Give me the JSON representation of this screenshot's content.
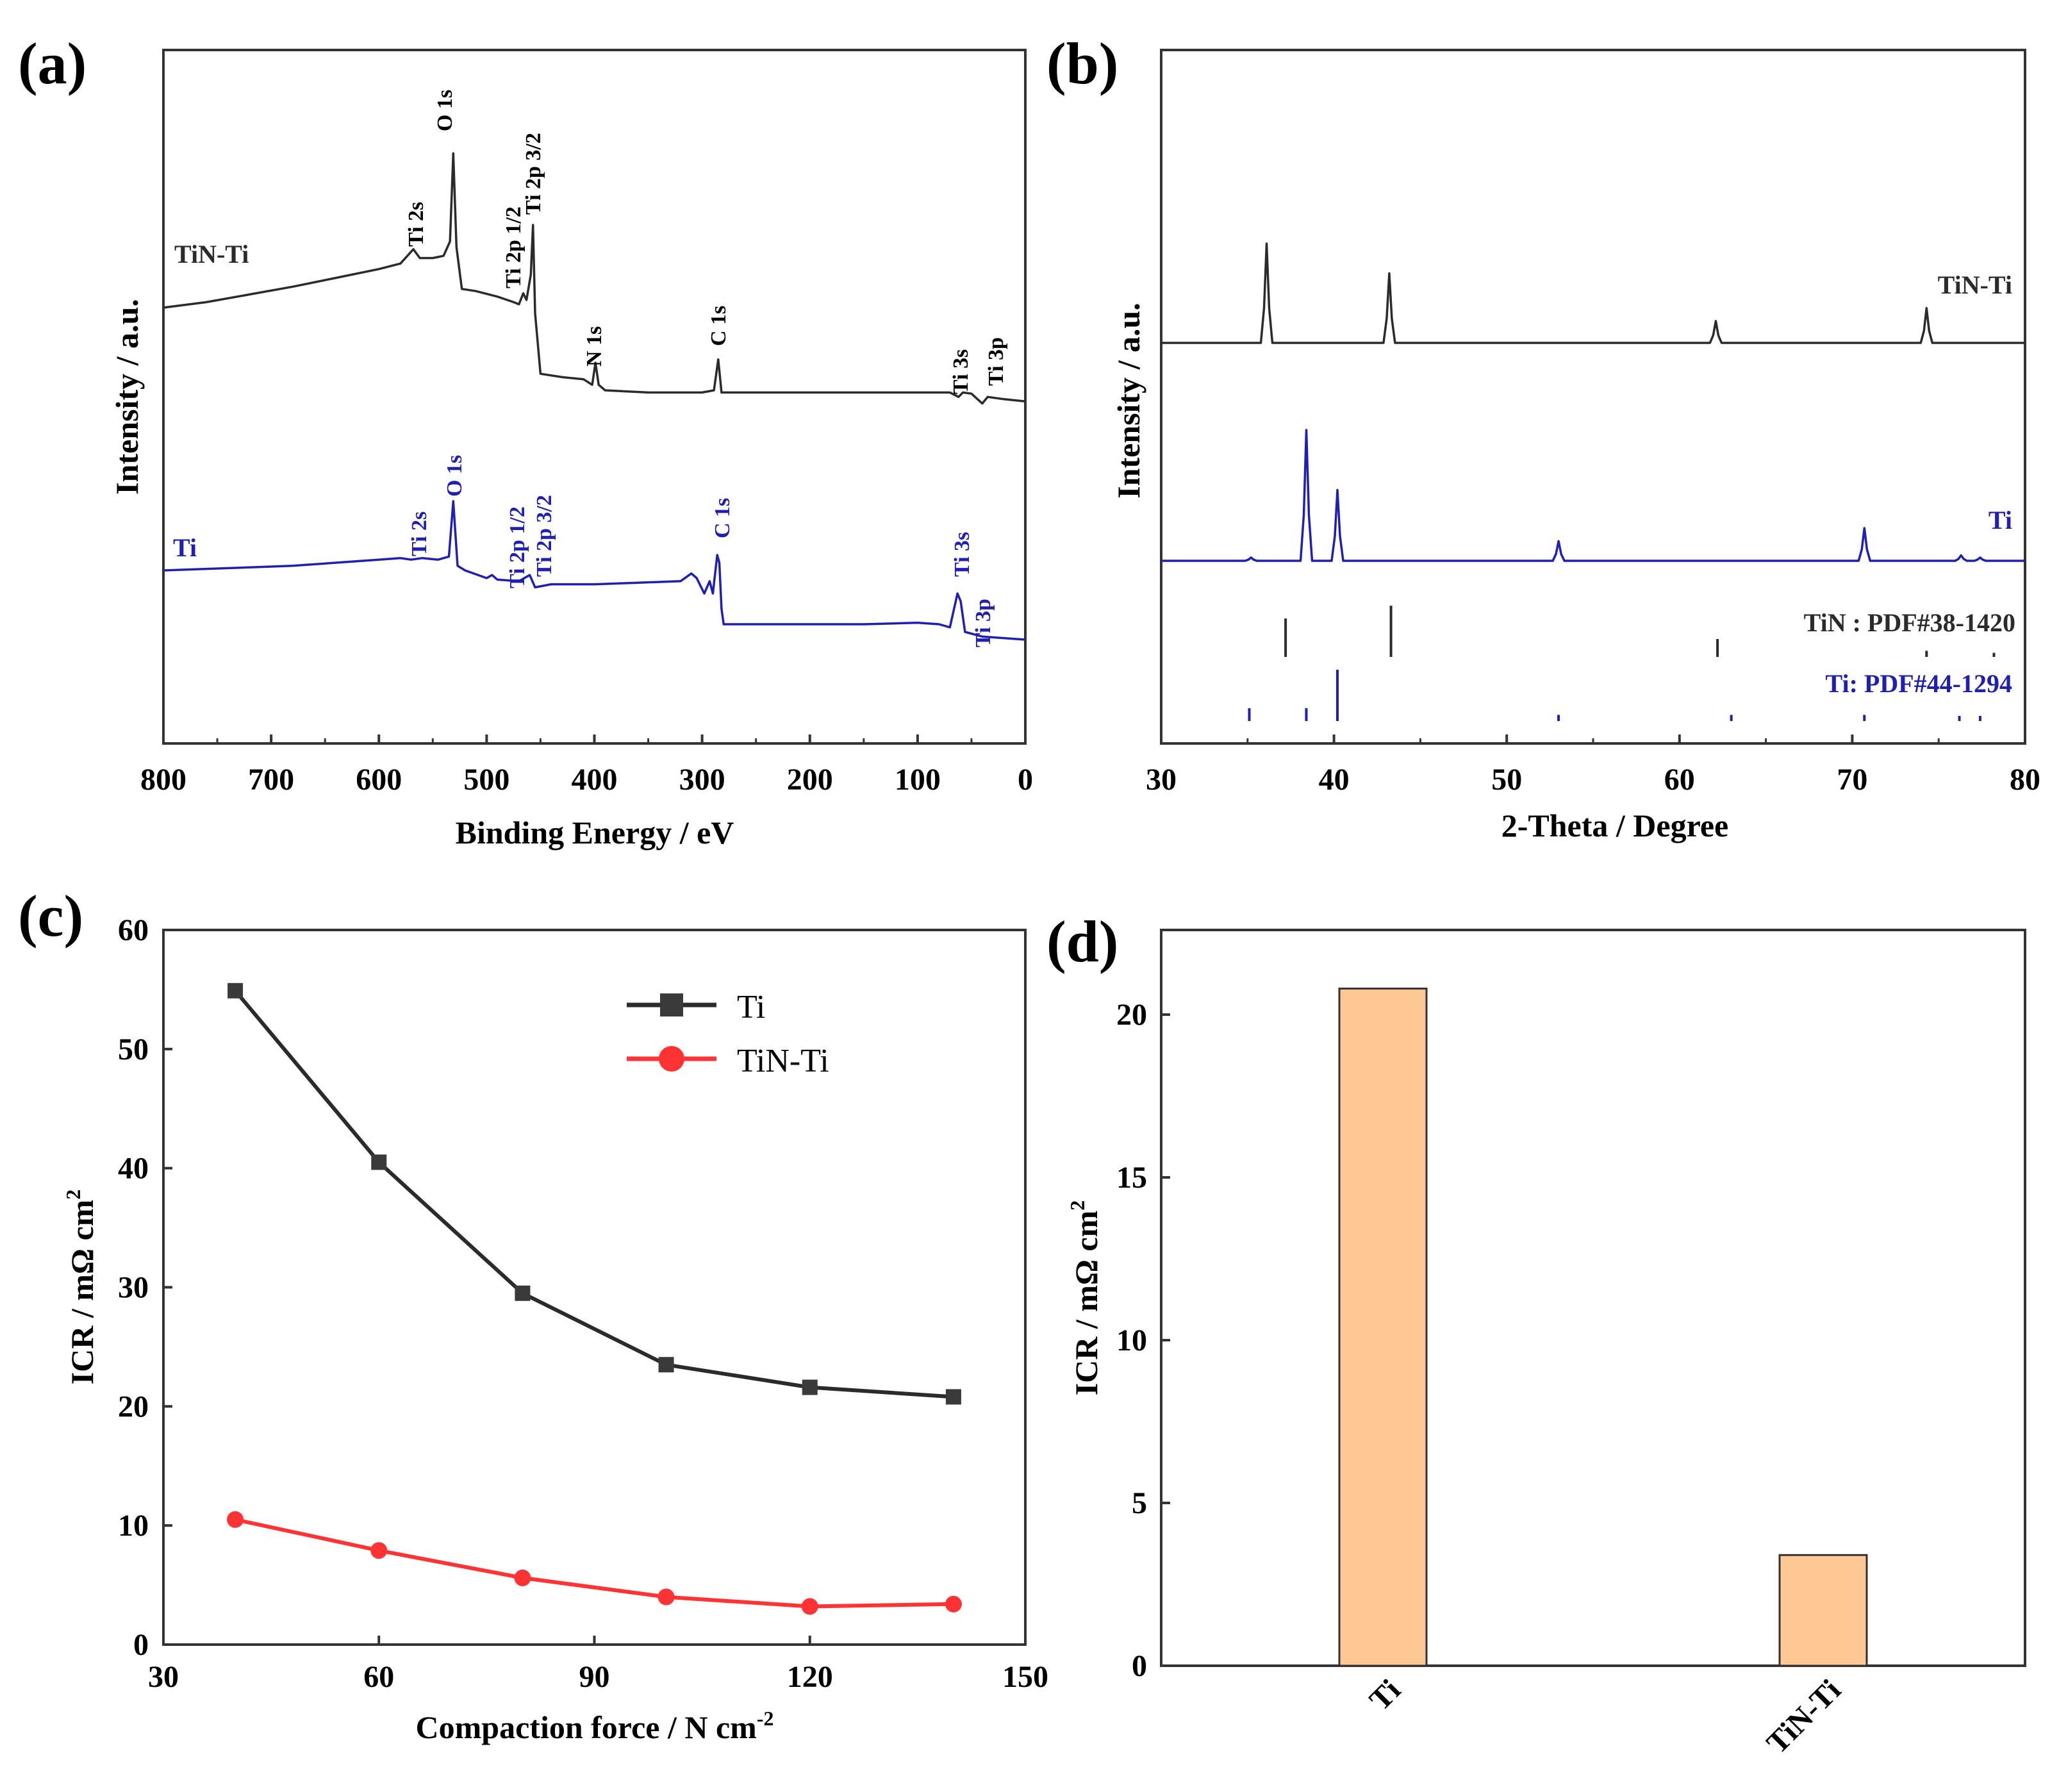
{
  "colors": {
    "black_series": "#2b2b2b",
    "blue_series": "#1f1fb4",
    "red_series": "#ff3333",
    "bar_fill": "#fdc894",
    "bar_stroke": "#333333"
  },
  "chart_data": [
    {
      "panel": "(a)",
      "type": "line",
      "title": "",
      "xlabel": "Binding Energy / eV",
      "ylabel": "Intensity / a.u.",
      "xlim": [
        800,
        0
      ],
      "xticks": [
        "800",
        "700",
        "600",
        "500",
        "400",
        "300",
        "200",
        "100",
        "0"
      ],
      "series": [
        {
          "name": "TiN-Ti",
          "color": "#2b2b2b",
          "points": [
            [
              800,
              1.55
            ],
            [
              760,
              1.6
            ],
            [
              720,
              1.67
            ],
            [
              680,
              1.74
            ],
            [
              640,
              1.82
            ],
            [
              600,
              1.9
            ],
            [
              580,
              1.95
            ],
            [
              568,
              2.08
            ],
            [
              562,
              2.0
            ],
            [
              550,
              2.0
            ],
            [
              540,
              2.02
            ],
            [
              534,
              2.15
            ],
            [
              531,
              2.95
            ],
            [
              528,
              2.1
            ],
            [
              523,
              1.72
            ],
            [
              510,
              1.7
            ],
            [
              490,
              1.65
            ],
            [
              475,
              1.6
            ],
            [
              470,
              1.58
            ],
            [
              466,
              1.68
            ],
            [
              463,
              1.62
            ],
            [
              459,
              1.85
            ],
            [
              457,
              2.3
            ],
            [
              455,
              1.5
            ],
            [
              450,
              0.95
            ],
            [
              430,
              0.92
            ],
            [
              410,
              0.9
            ],
            [
              402,
              0.85
            ],
            [
              399,
              1.05
            ],
            [
              396,
              0.85
            ],
            [
              390,
              0.8
            ],
            [
              350,
              0.78
            ],
            [
              300,
              0.78
            ],
            [
              289,
              0.8
            ],
            [
              285,
              1.08
            ],
            [
              282,
              0.78
            ],
            [
              250,
              0.78
            ],
            [
              200,
              0.78
            ],
            [
              150,
              0.78
            ],
            [
              100,
              0.78
            ],
            [
              70,
              0.78
            ],
            [
              62,
              0.74
            ],
            [
              58,
              0.78
            ],
            [
              50,
              0.77
            ],
            [
              40,
              0.68
            ],
            [
              35,
              0.74
            ],
            [
              20,
              0.72
            ],
            [
              0,
              0.7
            ]
          ]
        },
        {
          "name": "Ti",
          "color": "#1f1fb4",
          "points": [
            [
              800,
              0.05
            ],
            [
              760,
              0.06
            ],
            [
              720,
              0.07
            ],
            [
              680,
              0.08
            ],
            [
              640,
              0.1
            ],
            [
              600,
              0.12
            ],
            [
              580,
              0.13
            ],
            [
              570,
              0.12
            ],
            [
              560,
              0.13
            ],
            [
              545,
              0.12
            ],
            [
              535,
              0.14
            ],
            [
              531,
              0.5
            ],
            [
              527,
              0.08
            ],
            [
              520,
              0.05
            ],
            [
              500,
              0.0
            ],
            [
              495,
              0.02
            ],
            [
              490,
              -0.01
            ],
            [
              470,
              -0.02
            ],
            [
              460,
              0.02
            ],
            [
              455,
              -0.06
            ],
            [
              440,
              -0.04
            ],
            [
              400,
              -0.04
            ],
            [
              360,
              -0.03
            ],
            [
              320,
              -0.02
            ],
            [
              310,
              0.03
            ],
            [
              305,
              0.0
            ],
            [
              298,
              -0.1
            ],
            [
              293,
              -0.02
            ],
            [
              290,
              -0.1
            ],
            [
              286,
              0.15
            ],
            [
              284,
              0.1
            ],
            [
              282,
              -0.2
            ],
            [
              280,
              -0.3
            ],
            [
              250,
              -0.3
            ],
            [
              200,
              -0.3
            ],
            [
              150,
              -0.3
            ],
            [
              100,
              -0.29
            ],
            [
              80,
              -0.3
            ],
            [
              70,
              -0.32
            ],
            [
              63,
              -0.1
            ],
            [
              60,
              -0.15
            ],
            [
              56,
              -0.35
            ],
            [
              40,
              -0.38
            ],
            [
              20,
              -0.39
            ],
            [
              0,
              -0.4
            ]
          ]
        }
      ],
      "peak_labels": [
        "O 1s",
        "Ti 2s",
        "Ti 2p 1/2",
        "Ti 2p 3/2",
        "N 1s",
        "C 1s",
        "Ti 3s",
        "Ti 3p"
      ]
    },
    {
      "panel": "(b)",
      "type": "line",
      "title": "",
      "xlabel": "2-Theta / Degree",
      "ylabel": "Intensity / a.u.",
      "xlim": [
        30,
        80
      ],
      "xticks": [
        "30",
        "40",
        "50",
        "60",
        "70",
        "80"
      ],
      "series": [
        {
          "name": "TiN-Ti",
          "color": "#2b2b2b",
          "peaks": [
            [
              36.1,
              1.0
            ],
            [
              43.2,
              0.7
            ],
            [
              62.1,
              0.22
            ],
            [
              74.3,
              0.35
            ]
          ]
        },
        {
          "name": "Ti",
          "color": "#1f1fb4",
          "peaks": [
            [
              35.2,
              0.03
            ],
            [
              38.4,
              1.2
            ],
            [
              40.2,
              0.65
            ],
            [
              53.0,
              0.18
            ],
            [
              70.7,
              0.3
            ],
            [
              76.3,
              0.05
            ],
            [
              77.4,
              0.03
            ]
          ]
        }
      ],
      "references": [
        {
          "label": "TiN : PDF#38-1420",
          "color": "#2b2b2b",
          "lines": [
            [
              37.2,
              0.75
            ],
            [
              43.3,
              1.0
            ],
            [
              62.2,
              0.35
            ],
            [
              74.3,
              0.12
            ],
            [
              78.2,
              0.08
            ]
          ]
        },
        {
          "label": "Ti: PDF#44-1294",
          "color": "#1f1fb4",
          "lines": [
            [
              35.1,
              0.25
            ],
            [
              38.4,
              0.25
            ],
            [
              40.2,
              1.0
            ],
            [
              53.0,
              0.12
            ],
            [
              63.0,
              0.12
            ],
            [
              70.7,
              0.12
            ],
            [
              76.2,
              0.1
            ],
            [
              77.4,
              0.1
            ]
          ]
        }
      ]
    },
    {
      "panel": "(c)",
      "type": "line",
      "title": "",
      "xlabel": "Compaction force / N cm",
      "xlabel_sup": "-2",
      "ylabel": "ICR / mΩ cm",
      "ylabel_sup": "2",
      "xlim": [
        30,
        150
      ],
      "ylim": [
        0,
        60
      ],
      "xticks": [
        "30",
        "60",
        "90",
        "120",
        "150"
      ],
      "yticks": [
        "0",
        "10",
        "20",
        "30",
        "40",
        "50",
        "60"
      ],
      "x": [
        40,
        60,
        80,
        100,
        120,
        140
      ],
      "series": [
        {
          "name": "Ti",
          "marker": "square",
          "color": "#2b2b2b",
          "values": [
            54.9,
            40.5,
            29.5,
            23.5,
            21.6,
            20.8
          ]
        },
        {
          "name": "TiN-Ti",
          "marker": "circle",
          "color": "#ff3333",
          "values": [
            10.5,
            7.9,
            5.6,
            4.0,
            3.2,
            3.4
          ]
        }
      ]
    },
    {
      "panel": "(d)",
      "type": "bar",
      "title": "",
      "xlabel": "",
      "ylabel": "ICR / mΩ cm",
      "ylabel_sup": "2",
      "ylim": [
        0,
        22.6
      ],
      "yticks": [
        "0",
        "5",
        "10",
        "15",
        "20"
      ],
      "categories": [
        "Ti",
        "TiN-Ti"
      ],
      "values": [
        20.8,
        3.4
      ]
    }
  ]
}
